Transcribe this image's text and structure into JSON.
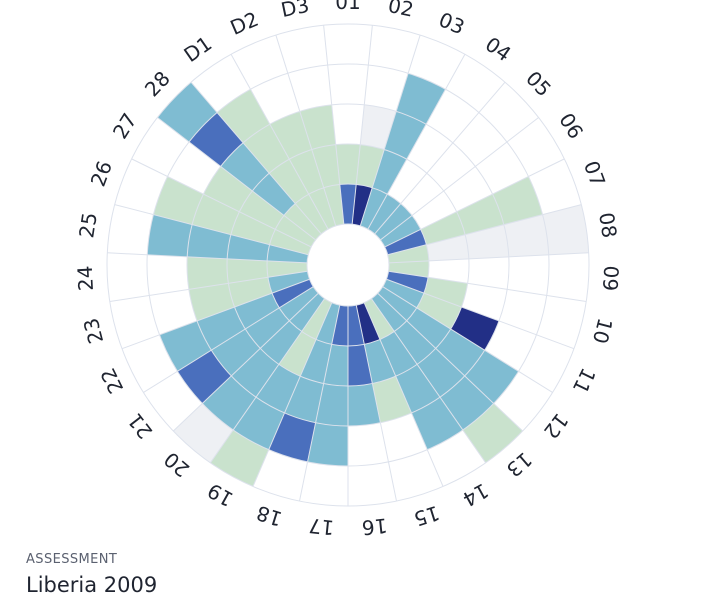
{
  "chart_data": {
    "type": "radial-heatmap",
    "rings": 5,
    "grid": true,
    "tick_labels": [
      "01",
      "02",
      "03",
      "04",
      "05",
      "06",
      "07",
      "08",
      "09",
      "10",
      "11",
      "12",
      "13",
      "14",
      "15",
      "16",
      "17",
      "18",
      "19",
      "20",
      "21",
      "22",
      "23",
      "24",
      "25",
      "26",
      "27",
      "28",
      "D1",
      "D2",
      "D3"
    ],
    "level_colors": [
      "#eef0f4",
      "#c9e2cd",
      "#7fbcd2",
      "#4a6fbd",
      "#222f86"
    ],
    "cells": [
      [
        3,
        1,
        -1,
        -1,
        -1
      ],
      [
        4,
        1,
        0,
        -1,
        -1
      ],
      [
        2,
        2,
        2,
        2,
        -1
      ],
      [
        2,
        -1,
        -1,
        -1,
        -1
      ],
      [
        2,
        -1,
        -1,
        -1,
        -1
      ],
      [
        2,
        -1,
        -1,
        -1,
        -1
      ],
      [
        3,
        1,
        1,
        1,
        -1
      ],
      [
        1,
        0,
        0,
        0,
        0
      ],
      [
        1,
        -1,
        -1,
        -1,
        -1
      ],
      [
        3,
        1,
        -1,
        -1,
        -1
      ],
      [
        2,
        1,
        4,
        -1,
        -1
      ],
      [
        2,
        2,
        2,
        2,
        -1
      ],
      [
        2,
        2,
        2,
        2,
        1
      ],
      [
        1,
        2,
        2,
        2,
        -1
      ],
      [
        4,
        2,
        1,
        -1,
        -1
      ],
      [
        3,
        3,
        2,
        -1,
        -1
      ],
      [
        3,
        2,
        2,
        2,
        -1
      ],
      [
        2,
        2,
        2,
        3,
        -1
      ],
      [
        1,
        1,
        2,
        2,
        1
      ],
      [
        2,
        2,
        2,
        2,
        0
      ],
      [
        2,
        2,
        2,
        3,
        -1
      ],
      [
        3,
        2,
        2,
        2,
        -1
      ],
      [
        2,
        1,
        1,
        -1,
        -1
      ],
      [
        1,
        1,
        1,
        -1,
        -1
      ],
      [
        2,
        2,
        2,
        2,
        -1
      ],
      [
        1,
        1,
        1,
        1,
        -1
      ],
      [
        1,
        1,
        1,
        -1,
        -1
      ],
      [
        1,
        2,
        2,
        3,
        2
      ],
      [
        1,
        1,
        1,
        1,
        -1
      ],
      [
        1,
        1,
        1,
        -1,
        -1
      ],
      [
        1,
        1,
        1,
        -1,
        -1
      ]
    ]
  },
  "caption": {
    "kicker": "ASSESSMENT",
    "title": "Liberia 2009"
  }
}
